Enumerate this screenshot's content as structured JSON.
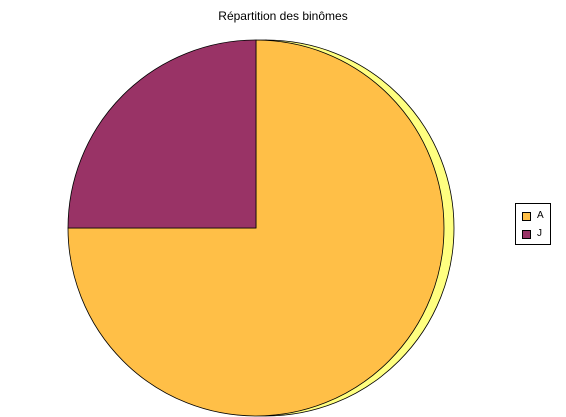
{
  "chart_data": {
    "type": "pie",
    "title": "Répartition des binômes",
    "slices": [
      {
        "label": "A",
        "value": 75,
        "color": "#FFBF47",
        "highlight": "#FFFF80"
      },
      {
        "label": "J",
        "value": 25,
        "color": "#993366",
        "highlight": "#CC66AA"
      }
    ],
    "start_angle_deg": 0,
    "legend_position": "right"
  }
}
